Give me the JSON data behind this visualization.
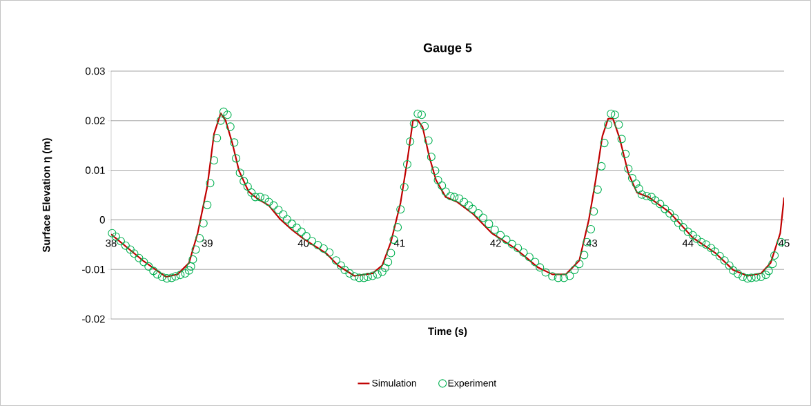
{
  "chart_data": {
    "type": "line",
    "title": "Gauge 5",
    "xlabel": "Time (s)",
    "ylabel": "Surface Elevation η (m)",
    "xlim": [
      38,
      45
    ],
    "xticks": [
      38,
      39,
      40,
      41,
      42,
      43,
      44,
      45
    ],
    "ylim": [
      -0.02,
      0.03
    ],
    "yticks": [
      -0.02,
      -0.01,
      0,
      0.01,
      0.02,
      0.03
    ],
    "grid": "y",
    "legend": "bottom",
    "series": [
      {
        "name": "Simulation",
        "type": "line",
        "color": "#c00000",
        "marker": "none",
        "line_style": "solid",
        "x": [
          38.0,
          38.33,
          38.57,
          38.69,
          38.81,
          38.9,
          39.0,
          39.07,
          39.14,
          39.19,
          39.26,
          39.33,
          39.43,
          39.52,
          39.64,
          39.76,
          39.88,
          40.0,
          40.24,
          40.36,
          40.53,
          40.72,
          40.82,
          40.91,
          41.01,
          41.08,
          41.14,
          41.19,
          41.24,
          41.31,
          41.38,
          41.48,
          41.6,
          41.77,
          41.96,
          42.2,
          42.44,
          42.59,
          42.73,
          42.87,
          42.97,
          43.04,
          43.11,
          43.17,
          43.22,
          43.29,
          43.38,
          43.47,
          43.59,
          43.81,
          44.05,
          44.28,
          44.47,
          44.62,
          44.76,
          44.86,
          44.96,
          45.0
        ],
        "values": [
          -0.0029,
          -0.0082,
          -0.0115,
          -0.011,
          -0.0087,
          -0.0027,
          0.0067,
          0.0173,
          0.0215,
          0.0201,
          0.0155,
          0.0099,
          0.0057,
          0.0043,
          0.0029,
          0.0001,
          -0.002,
          -0.0038,
          -0.0068,
          -0.0092,
          -0.0113,
          -0.0108,
          -0.0092,
          -0.0045,
          0.0034,
          0.0118,
          0.0201,
          0.0201,
          0.0187,
          0.0127,
          0.008,
          0.0046,
          0.0036,
          0.0011,
          -0.0027,
          -0.0057,
          -0.0096,
          -0.011,
          -0.011,
          -0.0082,
          0.0001,
          0.008,
          0.0169,
          0.0204,
          0.0204,
          0.0164,
          0.0094,
          0.0055,
          0.0046,
          0.0015,
          -0.0036,
          -0.0066,
          -0.0101,
          -0.0113,
          -0.0108,
          -0.0087,
          -0.0027,
          0.0045
        ]
      },
      {
        "name": "Experiment",
        "type": "scatter",
        "color": "#00b050",
        "marker": "circle",
        "x": [
          38.01,
          38.05,
          38.1,
          38.15,
          38.2,
          38.24,
          38.29,
          38.34,
          38.39,
          38.44,
          38.48,
          38.53,
          38.58,
          38.63,
          38.67,
          38.72,
          38.77,
          38.81,
          38.83,
          38.85,
          38.88,
          38.92,
          38.96,
          39.0,
          39.03,
          39.07,
          39.1,
          39.14,
          39.17,
          39.21,
          39.24,
          39.28,
          39.3,
          39.34,
          39.38,
          39.42,
          39.46,
          39.5,
          39.55,
          39.6,
          39.64,
          39.69,
          39.74,
          39.79,
          39.83,
          39.88,
          39.93,
          39.98,
          40.03,
          40.09,
          40.15,
          40.21,
          40.27,
          40.34,
          40.39,
          40.43,
          40.48,
          40.53,
          40.58,
          40.63,
          40.67,
          40.72,
          40.77,
          40.82,
          40.85,
          40.88,
          40.91,
          40.94,
          40.98,
          41.01,
          41.05,
          41.08,
          41.11,
          41.15,
          41.19,
          41.23,
          41.26,
          41.3,
          41.33,
          41.37,
          41.4,
          41.44,
          41.48,
          41.53,
          41.57,
          41.62,
          41.67,
          41.72,
          41.76,
          41.82,
          41.87,
          41.93,
          41.99,
          42.05,
          42.11,
          42.17,
          42.23,
          42.29,
          42.35,
          42.41,
          42.46,
          42.52,
          42.59,
          42.65,
          42.71,
          42.77,
          42.82,
          42.87,
          42.92,
          42.95,
          42.99,
          43.02,
          43.06,
          43.1,
          43.13,
          43.17,
          43.2,
          43.24,
          43.28,
          43.31,
          43.35,
          43.38,
          43.42,
          43.46,
          43.49,
          43.52,
          43.57,
          43.62,
          43.66,
          43.71,
          43.76,
          43.81,
          43.86,
          43.9,
          43.95,
          44.0,
          44.05,
          44.09,
          44.14,
          44.19,
          44.24,
          44.28,
          44.33,
          44.38,
          44.43,
          44.47,
          44.52,
          44.57,
          44.62,
          44.66,
          44.71,
          44.76,
          44.81,
          44.84,
          44.88,
          44.9,
          44.97
        ],
        "values": [
          -0.0027,
          -0.0034,
          -0.0043,
          -0.0052,
          -0.006,
          -0.0068,
          -0.0077,
          -0.0085,
          -0.0094,
          -0.0103,
          -0.011,
          -0.0115,
          -0.0118,
          -0.0117,
          -0.0114,
          -0.0111,
          -0.0108,
          -0.0102,
          -0.0094,
          -0.008,
          -0.006,
          -0.0037,
          -0.0007,
          0.003,
          0.0074,
          0.012,
          0.0165,
          0.02,
          0.0218,
          0.0212,
          0.0188,
          0.0156,
          0.0124,
          0.0095,
          0.0078,
          0.0067,
          0.0055,
          0.0046,
          0.0046,
          0.0043,
          0.0036,
          0.0029,
          0.002,
          0.0011,
          0.0001,
          -0.0008,
          -0.0016,
          -0.0024,
          -0.0033,
          -0.0043,
          -0.0051,
          -0.0058,
          -0.0066,
          -0.0082,
          -0.0092,
          -0.0101,
          -0.0108,
          -0.0114,
          -0.0117,
          -0.0117,
          -0.0115,
          -0.0113,
          -0.011,
          -0.0105,
          -0.0097,
          -0.0085,
          -0.0067,
          -0.004,
          -0.0015,
          0.0021,
          0.0066,
          0.0112,
          0.0158,
          0.0194,
          0.0214,
          0.0212,
          0.0189,
          0.016,
          0.0127,
          0.0099,
          0.008,
          0.0069,
          0.0057,
          0.0048,
          0.0046,
          0.0043,
          0.0036,
          0.0029,
          0.0022,
          0.0013,
          0.0004,
          -0.0008,
          -0.002,
          -0.0031,
          -0.004,
          -0.0049,
          -0.0057,
          -0.0066,
          -0.0075,
          -0.0085,
          -0.0096,
          -0.0106,
          -0.0114,
          -0.0117,
          -0.0117,
          -0.0113,
          -0.0101,
          -0.0089,
          -0.0071,
          -0.0045,
          -0.0019,
          0.0017,
          0.0061,
          0.0108,
          0.0155,
          0.0192,
          0.0214,
          0.0212,
          0.0192,
          0.0163,
          0.0133,
          0.0103,
          0.0084,
          0.0073,
          0.0063,
          0.0051,
          0.0048,
          0.0046,
          0.0039,
          0.0032,
          0.0022,
          0.0013,
          0.0004,
          -0.0006,
          -0.0015,
          -0.0024,
          -0.0031,
          -0.0038,
          -0.0045,
          -0.005,
          -0.0057,
          -0.0064,
          -0.0073,
          -0.0082,
          -0.0092,
          -0.0102,
          -0.0109,
          -0.0115,
          -0.0118,
          -0.0117,
          -0.0116,
          -0.0115,
          -0.0111,
          -0.0103,
          -0.0089,
          -0.0072,
          -0.0045
        ]
      }
    ]
  }
}
